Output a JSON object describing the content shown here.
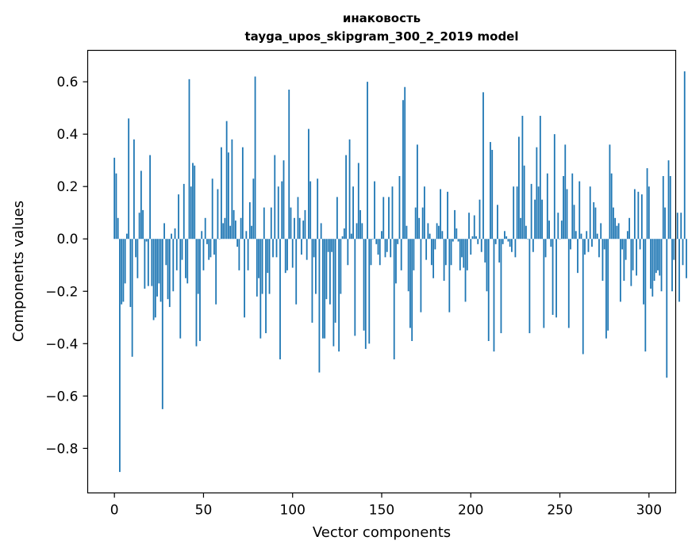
{
  "chart_data": {
    "type": "bar",
    "title": "инаковость",
    "subtitle": "tayga_upos_skipgram_300_2_2019 model",
    "xlabel": "Vector components",
    "ylabel": "Components values",
    "xlim": [
      -15,
      315
    ],
    "ylim": [
      -0.97,
      0.72
    ],
    "xticks": [
      0,
      50,
      100,
      150,
      200,
      250,
      300
    ],
    "yticks": [
      -0.8,
      -0.6,
      -0.4,
      -0.2,
      0.0,
      0.2,
      0.4,
      0.6
    ],
    "ytick_labels": [
      "−0.8",
      "−0.6",
      "−0.4",
      "−0.2",
      "0.0",
      "0.2",
      "0.4",
      "0.6"
    ],
    "bar_color": "#1f77b4",
    "values": [
      0.31,
      0.25,
      0.08,
      -0.89,
      -0.25,
      -0.24,
      -0.17,
      0.02,
      0.46,
      -0.26,
      -0.45,
      0.38,
      -0.07,
      -0.15,
      0.1,
      0.26,
      0.11,
      -0.19,
      -0.01,
      -0.18,
      0.32,
      -0.18,
      -0.31,
      -0.3,
      -0.22,
      -0.17,
      -0.24,
      -0.65,
      0.06,
      -0.1,
      -0.23,
      -0.26,
      0.02,
      -0.2,
      0.04,
      -0.12,
      0.17,
      -0.38,
      -0.08,
      0.21,
      -0.15,
      -0.17,
      0.61,
      0.2,
      0.29,
      0.28,
      -0.41,
      -0.21,
      -0.39,
      0.03,
      -0.12,
      0.08,
      -0.02,
      -0.08,
      -0.07,
      0.23,
      -0.06,
      -0.25,
      0.19,
      0.0,
      0.35,
      0.06,
      0.08,
      0.45,
      0.33,
      0.05,
      0.38,
      0.11,
      0.07,
      -0.03,
      -0.12,
      0.08,
      0.35,
      -0.3,
      0.03,
      -0.12,
      0.14,
      0.05,
      0.23,
      0.62,
      -0.22,
      -0.15,
      -0.38,
      -0.21,
      0.12,
      -0.36,
      -0.13,
      -0.21,
      0.12,
      -0.07,
      0.32,
      -0.07,
      0.2,
      -0.46,
      0.22,
      0.3,
      -0.13,
      -0.12,
      0.57,
      0.12,
      -0.11,
      0.08,
      -0.25,
      0.16,
      0.08,
      -0.06,
      0.07,
      0.11,
      -0.08,
      0.42,
      0.22,
      -0.32,
      -0.07,
      -0.21,
      0.23,
      -0.51,
      0.06,
      -0.38,
      -0.38,
      -0.23,
      -0.05,
      -0.25,
      -0.05,
      -0.41,
      -0.32,
      0.16,
      -0.43,
      -0.21,
      0.01,
      0.04,
      0.32,
      -0.1,
      0.38,
      0.02,
      0.2,
      -0.37,
      0.06,
      0.29,
      0.11,
      0.06,
      -0.35,
      -0.42,
      0.6,
      -0.4,
      -0.1,
      0.0,
      0.22,
      -0.02,
      -0.06,
      -0.1,
      0.03,
      0.16,
      -0.07,
      -0.05,
      0.16,
      -0.07,
      0.2,
      -0.46,
      -0.17,
      -0.02,
      0.24,
      -0.12,
      0.53,
      0.58,
      0.05,
      -0.2,
      -0.34,
      -0.39,
      -0.12,
      0.12,
      0.36,
      0.08,
      -0.28,
      0.12,
      0.2,
      -0.08,
      0.06,
      0.02,
      -0.1,
      -0.15,
      -0.04,
      0.06,
      0.05,
      0.19,
      0.03,
      -0.16,
      -0.1,
      0.18,
      -0.28,
      -0.1,
      -0.01,
      0.11,
      0.04,
      -0.01,
      -0.12,
      -0.07,
      -0.11,
      -0.24,
      -0.12,
      0.1,
      -0.06,
      0.01,
      0.09,
      0.01,
      -0.02,
      0.15,
      -0.05,
      0.56,
      -0.09,
      -0.2,
      -0.39,
      0.37,
      0.34,
      -0.43,
      -0.02,
      0.13,
      -0.09,
      -0.36,
      -0.02,
      0.03,
      0.01,
      -0.01,
      -0.03,
      -0.05,
      0.2,
      -0.07,
      0.2,
      0.39,
      0.08,
      0.47,
      0.28,
      0.05,
      0.0,
      -0.36,
      0.21,
      -0.05,
      0.15,
      0.35,
      0.2,
      0.47,
      0.15,
      -0.34,
      -0.07,
      0.25,
      0.07,
      -0.03,
      -0.29,
      0.4,
      -0.3,
      0.1,
      0.0,
      0.07,
      0.24,
      0.36,
      0.19,
      -0.34,
      -0.04,
      0.25,
      0.13,
      0.03,
      -0.13,
      0.22,
      0.02,
      -0.44,
      -0.06,
      0.03,
      -0.05,
      0.2,
      -0.03,
      0.14,
      0.12,
      0.02,
      -0.07,
      0.06,
      -0.16,
      -0.04,
      -0.38,
      -0.35,
      0.36,
      0.25,
      0.12,
      0.08,
      0.05,
      0.06,
      -0.24,
      -0.04,
      -0.16,
      -0.08,
      0.03,
      0.08,
      -0.18,
      -0.12,
      0.19,
      -0.14,
      0.18,
      -0.04,
      0.17,
      -0.25,
      -0.43,
      0.27,
      0.2,
      -0.19,
      -0.22,
      -0.16,
      -0.13,
      -0.12,
      -0.14,
      -0.2,
      0.24,
      0.12,
      -0.53,
      0.3,
      0.24,
      -0.2,
      -0.08,
      0.0,
      0.1,
      -0.24,
      0.1,
      -0.1,
      0.64,
      -0.15
    ]
  }
}
